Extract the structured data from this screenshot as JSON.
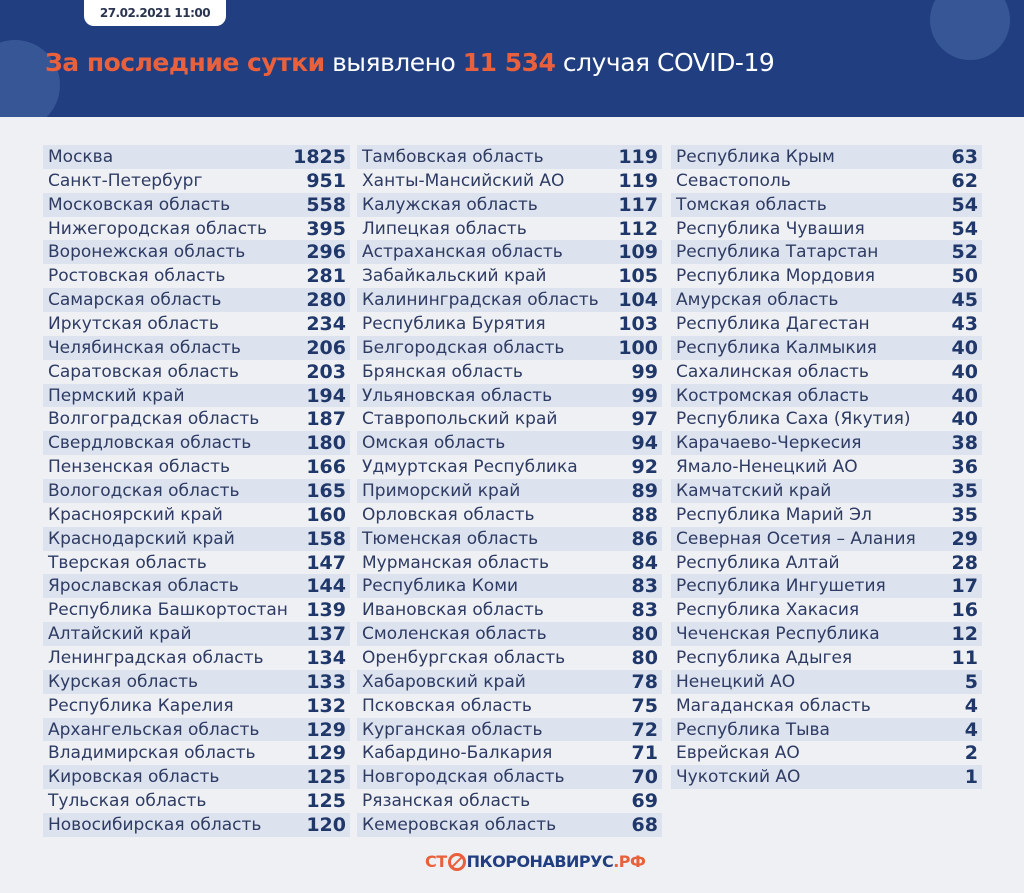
{
  "header": {
    "date": "27.02.2021 11:00",
    "title_highlight": "За последние сутки",
    "title_mid": "выявлено",
    "count": "11 534",
    "title_end": "случая COVID-19"
  },
  "footer": {
    "logo_pre": "СТ",
    "logo_main": "ПКОРОНАВИРУС",
    "logo_suffix": ".РФ"
  },
  "colors": {
    "header_bg": "#213f80",
    "accent": "#e8603c",
    "text": "#2e3b63"
  },
  "columns": [
    [
      [
        "Москва",
        "1825"
      ],
      [
        "Санкт-Петербург",
        "951"
      ],
      [
        "Московская область",
        "558"
      ],
      [
        "Нижегородская область",
        "395"
      ],
      [
        "Воронежская область",
        "296"
      ],
      [
        "Ростовская область",
        "281"
      ],
      [
        "Самарская область",
        "280"
      ],
      [
        "Иркутская область",
        "234"
      ],
      [
        "Челябинская область",
        "206"
      ],
      [
        "Саратовская область",
        "203"
      ],
      [
        "Пермский край",
        "194"
      ],
      [
        "Волгоградская область",
        "187"
      ],
      [
        "Свердловская область",
        "180"
      ],
      [
        "Пензенская область",
        "166"
      ],
      [
        "Вологодская область",
        "165"
      ],
      [
        "Красноярский край",
        "160"
      ],
      [
        "Краснодарский край",
        "158"
      ],
      [
        "Тверская область",
        "147"
      ],
      [
        "Ярославская область",
        "144"
      ],
      [
        "Республика Башкортостан",
        "139"
      ],
      [
        "Алтайский край",
        "137"
      ],
      [
        "Ленинградская область",
        "134"
      ],
      [
        "Курская область",
        "133"
      ],
      [
        "Республика Карелия",
        "132"
      ],
      [
        "Архангельская область",
        "129"
      ],
      [
        "Владимирская область",
        "129"
      ],
      [
        "Кировская область",
        "125"
      ],
      [
        "Тульская область",
        "125"
      ],
      [
        "Новосибирская область",
        "120"
      ]
    ],
    [
      [
        "Тамбовская область",
        "119"
      ],
      [
        "Ханты-Мансийский АО",
        "119"
      ],
      [
        "Калужская область",
        "117"
      ],
      [
        "Липецкая область",
        "112"
      ],
      [
        "Астраханская область",
        "109"
      ],
      [
        "Забайкальский край",
        "105"
      ],
      [
        "Калининградская область",
        "104"
      ],
      [
        "Республика Бурятия",
        "103"
      ],
      [
        "Белгородская область",
        "100"
      ],
      [
        "Брянская область",
        "99"
      ],
      [
        "Ульяновская область",
        "99"
      ],
      [
        "Ставропольский край",
        "97"
      ],
      [
        "Омская область",
        "94"
      ],
      [
        "Удмуртская Республика",
        "92"
      ],
      [
        "Приморский край",
        "89"
      ],
      [
        "Орловская область",
        "88"
      ],
      [
        "Тюменская область",
        "86"
      ],
      [
        "Мурманская область",
        "84"
      ],
      [
        "Республика Коми",
        "83"
      ],
      [
        "Ивановская область",
        "83"
      ],
      [
        "Смоленская область",
        "80"
      ],
      [
        "Оренбургская область",
        "80"
      ],
      [
        "Хабаровский край",
        "78"
      ],
      [
        "Псковская область",
        "75"
      ],
      [
        "Курганская область",
        "72"
      ],
      [
        "Кабардино-Балкария",
        "71"
      ],
      [
        "Новгородская область",
        "70"
      ],
      [
        "Рязанская область",
        "69"
      ],
      [
        "Кемеровская область",
        "68"
      ]
    ],
    [
      [
        "Республика Крым",
        "63"
      ],
      [
        "Севастополь",
        "62"
      ],
      [
        "Томская область",
        "54"
      ],
      [
        "Республика Чувашия",
        "54"
      ],
      [
        "Республика Татарстан",
        "52"
      ],
      [
        "Республика Мордовия",
        "50"
      ],
      [
        "Амурская область",
        "45"
      ],
      [
        "Республика Дагестан",
        "43"
      ],
      [
        "Республика Калмыкия",
        "40"
      ],
      [
        "Сахалинская область",
        "40"
      ],
      [
        "Костромская область",
        "40"
      ],
      [
        "Республика Саха (Якутия)",
        "40"
      ],
      [
        "Карачаево-Черкесия",
        "38"
      ],
      [
        "Ямало-Ненецкий АО",
        "36"
      ],
      [
        "Камчатский край",
        "35"
      ],
      [
        "Республика Марий Эл",
        "35"
      ],
      [
        "Северная Осетия – Алания",
        "29"
      ],
      [
        "Республика Алтай",
        "28"
      ],
      [
        "Республика Ингушетия",
        "17"
      ],
      [
        "Республика Хакасия",
        "16"
      ],
      [
        "Чеченская Республика",
        "12"
      ],
      [
        "Республика Адыгея",
        "11"
      ],
      [
        "Ненецкий АО",
        "5"
      ],
      [
        "Магаданская область",
        "4"
      ],
      [
        "Республика Тыва",
        "4"
      ],
      [
        "Еврейская АО",
        "2"
      ],
      [
        "Чукотский АО",
        "1"
      ]
    ]
  ]
}
